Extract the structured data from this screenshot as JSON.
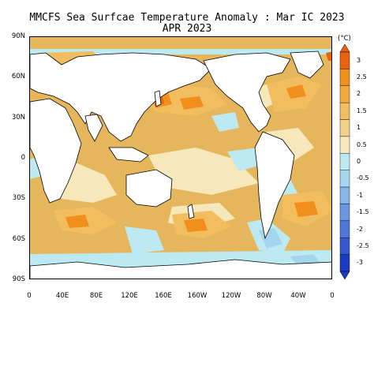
{
  "title_line1": "MMCFS Sea Surfcae Temperature Anomaly : Mar IC 2023",
  "title_line2": "APR 2023",
  "y_ticks": [
    "90N",
    "60N",
    "30N",
    "0",
    "30S",
    "60S",
    "90S"
  ],
  "x_ticks": [
    "0",
    "40E",
    "80E",
    "120E",
    "160E",
    "160W",
    "120W",
    "80W",
    "40W",
    "0"
  ],
  "colorbar": {
    "unit": "(°C)",
    "labels": [
      "3",
      "2.5",
      "2",
      "1.5",
      "1",
      "0.5",
      "0",
      "-0.5",
      "-1",
      "-1.5",
      "-2",
      "-2.5",
      "-3"
    ],
    "colors": [
      "#e8620f",
      "#f08f1c",
      "#f3a83c",
      "#f2bd5f",
      "#efd18a",
      "#f6e8bb",
      "#bdeaf2",
      "#a3d6ec",
      "#84b7e6",
      "#6a97e0",
      "#4f76d9",
      "#3558cf",
      "#1c3bc4"
    ]
  },
  "legend_colors": {
    "land": "#ffffff",
    "coast": "#000000"
  }
}
